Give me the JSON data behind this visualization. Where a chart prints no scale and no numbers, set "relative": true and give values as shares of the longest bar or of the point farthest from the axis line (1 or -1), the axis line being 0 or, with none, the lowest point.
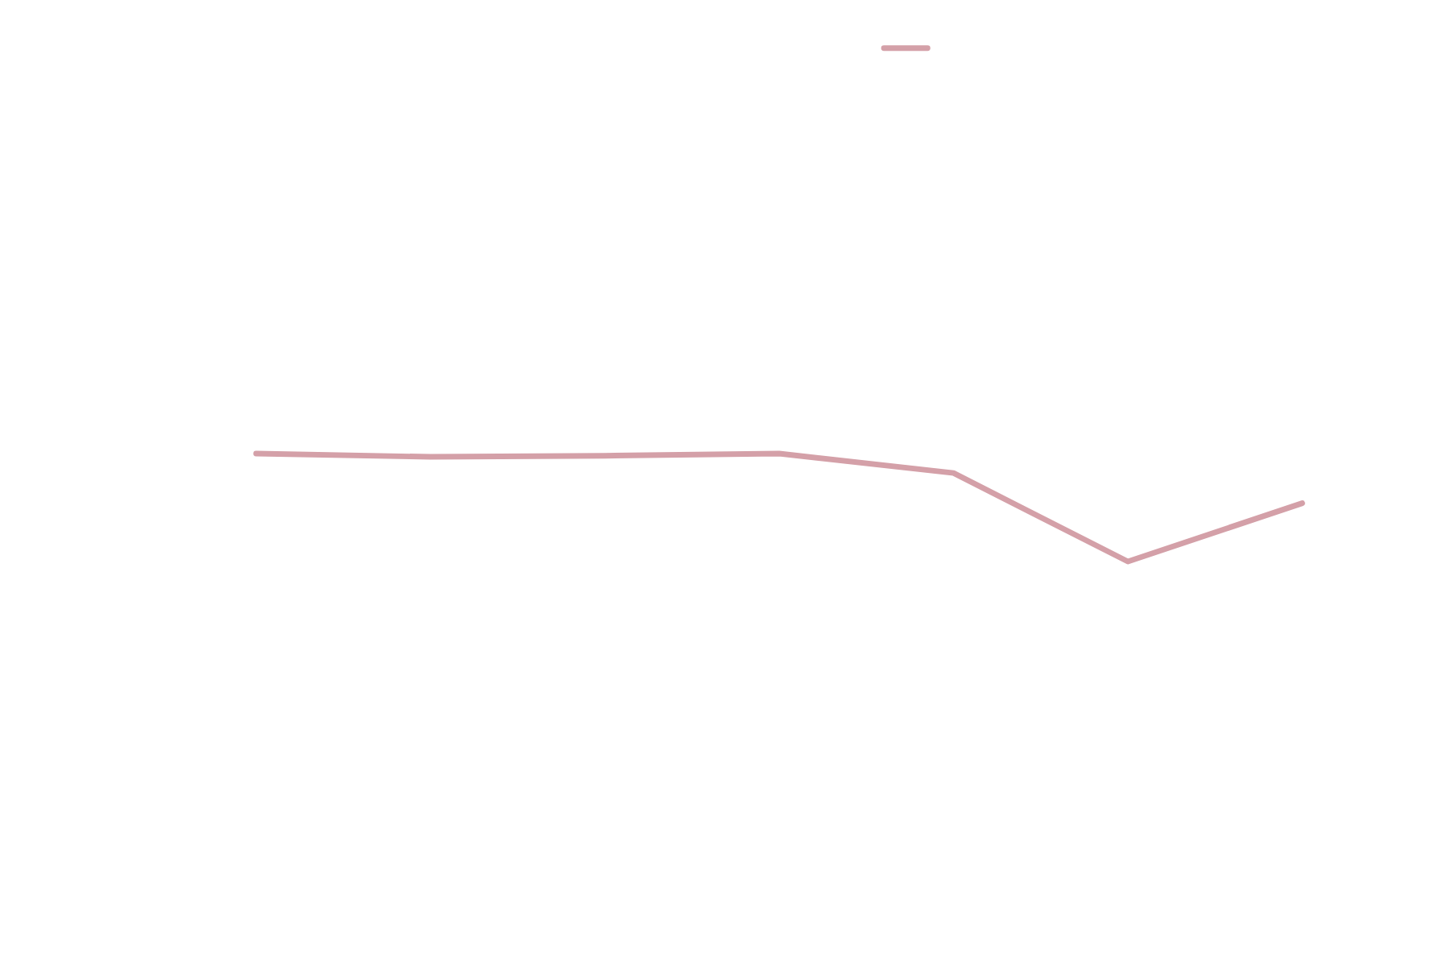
{
  "chart_data": {
    "type": "line",
    "relative": true,
    "categories": [
      null,
      null,
      null,
      null,
      null,
      null,
      null
    ],
    "series": [
      {
        "color": "#d4a0a8",
        "values": [
          1,
          0.97,
          0.98,
          1,
          0.82,
          0,
          0.54
        ]
      }
    ],
    "marker": "none",
    "line_style": "solid",
    "grid": false
  }
}
